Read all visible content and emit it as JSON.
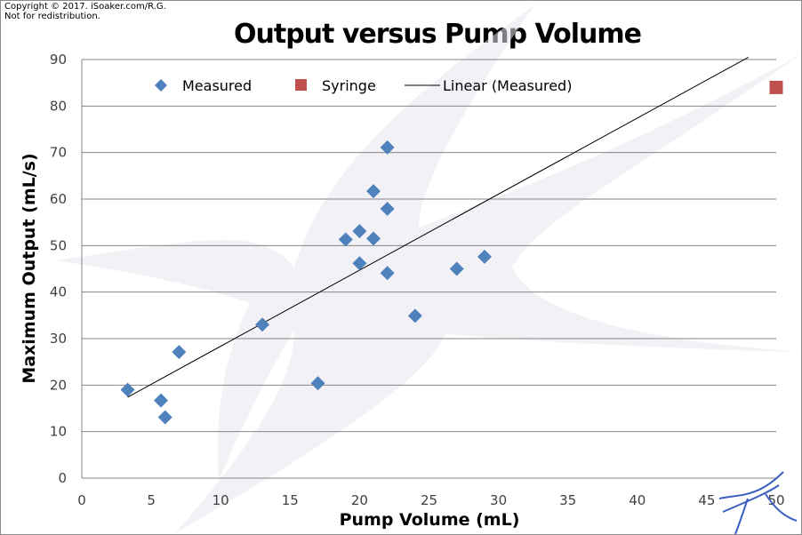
{
  "copyright": "Copyright © 2017. iSoaker.com/R.G.\nNot for redistribution.",
  "chart_data": {
    "type": "scatter",
    "title": "Output versus Pump Volume",
    "xlabel": "Pump Volume (mL)",
    "ylabel": "Maximum Output (mL/s)",
    "xlim": [
      0,
      50
    ],
    "ylim": [
      0,
      90
    ],
    "x_ticks": [
      0,
      5,
      10,
      15,
      20,
      25,
      30,
      35,
      40,
      45,
      50
    ],
    "y_ticks": [
      0,
      10,
      20,
      30,
      40,
      50,
      60,
      70,
      80,
      90
    ],
    "grid": "horizontal",
    "legend_position": "top",
    "series": [
      {
        "name": "Measured",
        "marker": "diamond",
        "color": "#4f81bd",
        "points": [
          [
            3.3,
            19.0
          ],
          [
            5.7,
            16.7
          ],
          [
            6.0,
            13.1
          ],
          [
            7.0,
            27.1
          ],
          [
            13.0,
            33.0
          ],
          [
            17.0,
            20.4
          ],
          [
            19.0,
            51.3
          ],
          [
            20.0,
            53.1
          ],
          [
            20.0,
            46.2
          ],
          [
            21.0,
            61.7
          ],
          [
            21.0,
            51.5
          ],
          [
            22.0,
            71.1
          ],
          [
            22.0,
            57.9
          ],
          [
            22.0,
            44.1
          ],
          [
            24.0,
            34.9
          ],
          [
            27.0,
            45.0
          ],
          [
            29.0,
            47.6
          ]
        ]
      },
      {
        "name": "Syringe",
        "marker": "square",
        "color": "#c0504d",
        "points": [
          [
            50.0,
            84.0
          ]
        ]
      },
      {
        "name": "Linear (Measured)",
        "marker": "line",
        "color": "#000000",
        "points": [
          [
            3.3,
            17.4
          ],
          [
            48.0,
            90.5
          ]
        ]
      }
    ]
  }
}
